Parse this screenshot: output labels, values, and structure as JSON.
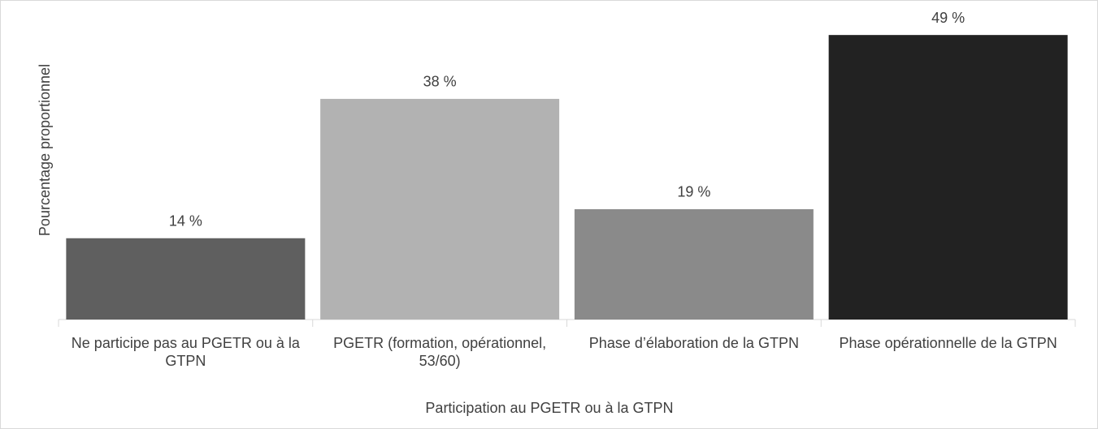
{
  "chart_data": {
    "type": "bar",
    "y_label": "Pourcentage proportionnel",
    "x_label": "Participation au PGETR ou à la GTPN",
    "categories": [
      "Ne participe pas au PGETR ou à la GTPN",
      "PGETR (formation, opérationnel, 53/60)",
      "Phase d’élaboration de la GTPN",
      "Phase opérationnelle de la GTPN"
    ],
    "values": [
      14,
      38,
      19,
      49
    ],
    "value_labels": [
      "14 %",
      "38 %",
      "19 %",
      "49 %"
    ],
    "colors": [
      "#5f5f5f",
      "#b2b2b2",
      "#8a8a8a",
      "#222222"
    ],
    "ylim": [
      0,
      50
    ]
  }
}
